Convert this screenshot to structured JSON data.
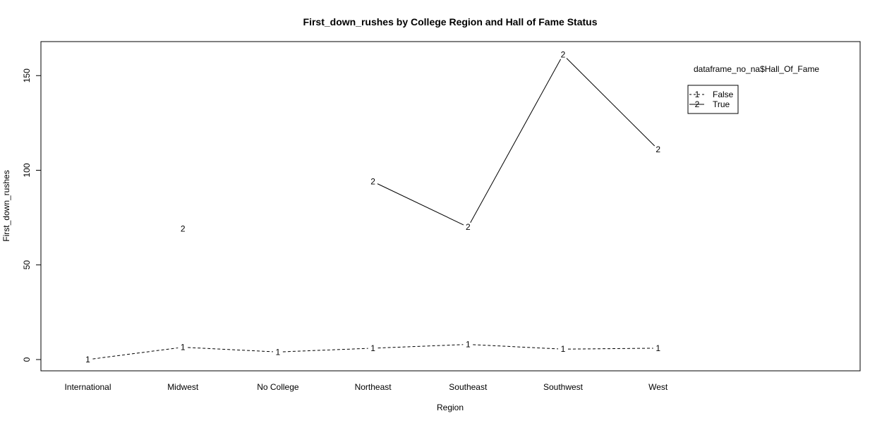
{
  "chart_data": {
    "type": "line",
    "title": "First_down_rushes by College Region and Hall of Fame Status",
    "xlabel": "Region",
    "ylabel": "First_down_rushes",
    "categories": [
      "International",
      "Midwest",
      "No College",
      "Northeast",
      "Southeast",
      "Southwest",
      "West"
    ],
    "ylim": [
      -6,
      168
    ],
    "yticks": [
      0,
      50,
      100,
      150
    ],
    "grid": false,
    "legend": {
      "title": "dataframe_no_na$Hall_Of_Fame",
      "placement": "top-right",
      "entries": [
        {
          "symbol": "1",
          "label": "False",
          "linestyle": "dashed"
        },
        {
          "symbol": "2",
          "label": "True",
          "linestyle": "solid"
        }
      ]
    },
    "series": [
      {
        "name": "False",
        "symbol": "1",
        "linestyle": "dashed",
        "color": "#000000",
        "values": [
          0,
          6.5,
          4,
          6,
          8,
          5.5,
          6
        ]
      },
      {
        "name": "True",
        "symbol": "2",
        "linestyle": "solid",
        "color": "#000000",
        "values": [
          null,
          69,
          null,
          94,
          70,
          161,
          111
        ]
      }
    ]
  }
}
